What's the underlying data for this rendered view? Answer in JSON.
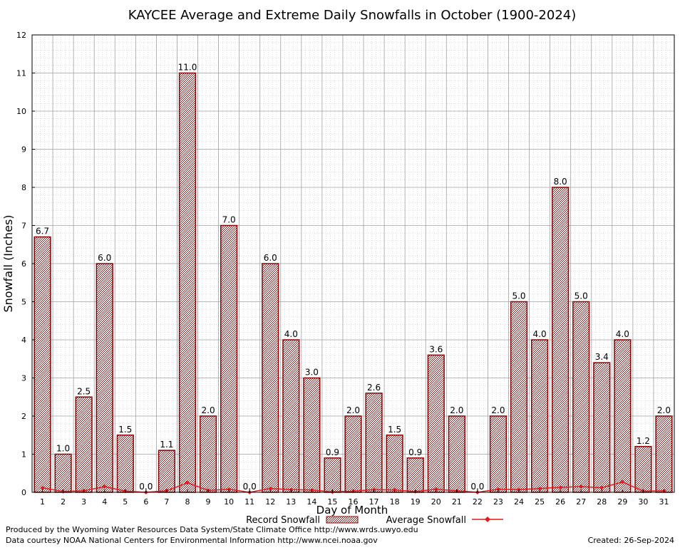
{
  "colors": {
    "bar_fill": "#a05050",
    "bar_stroke": "#8b0000",
    "avg_line": "#e31a1c",
    "grid": "#a0a0a0",
    "minor_grid": "#c8c8c8"
  },
  "chart_data": {
    "type": "bar",
    "title": "KAYCEE Average and Extreme Daily Snowfalls in October (1900-2024)",
    "xlabel": "Day of Month",
    "ylabel": "Snowfall (Inches)",
    "ylim": [
      0,
      12
    ],
    "yticks": [
      "0",
      "1",
      "2",
      "3",
      "4",
      "5",
      "6",
      "7",
      "8",
      "9",
      "10",
      "11",
      "12"
    ],
    "grid": true,
    "legend_position": "bottom",
    "categories": [
      "1",
      "2",
      "3",
      "4",
      "5",
      "6",
      "7",
      "8",
      "9",
      "10",
      "11",
      "12",
      "13",
      "14",
      "15",
      "16",
      "17",
      "18",
      "19",
      "20",
      "21",
      "22",
      "23",
      "24",
      "25",
      "26",
      "27",
      "28",
      "29",
      "30",
      "31"
    ],
    "series": [
      {
        "name": "Record Snowfall",
        "kind": "bar",
        "values": [
          6.7,
          1.0,
          2.5,
          6.0,
          1.5,
          0.0,
          1.1,
          11.0,
          2.0,
          7.0,
          0.0,
          6.0,
          4.0,
          3.0,
          0.9,
          2.0,
          2.6,
          1.5,
          0.9,
          3.6,
          2.0,
          0.0,
          2.0,
          5.0,
          4.0,
          8.0,
          5.0,
          3.4,
          4.0,
          1.2,
          2.0
        ],
        "labels": [
          "6.7",
          "1.0",
          "2.5",
          "6.0",
          "1.5",
          "0.0",
          "1.1",
          "11.0",
          "2.0",
          "7.0",
          "0.0",
          "6.0",
          "4.0",
          "3.0",
          "0.9",
          "2.0",
          "2.6",
          "1.5",
          "0.9",
          "3.6",
          "2.0",
          "0.0",
          "2.0",
          "5.0",
          "4.0",
          "8.0",
          "5.0",
          "3.4",
          "4.0",
          "1.2",
          "2.0"
        ]
      },
      {
        "name": "Average Snowfall",
        "kind": "line",
        "values": [
          0.12,
          0.02,
          0.04,
          0.15,
          0.03,
          0.0,
          0.04,
          0.25,
          0.05,
          0.08,
          0.0,
          0.1,
          0.07,
          0.06,
          0.01,
          0.03,
          0.07,
          0.06,
          0.02,
          0.08,
          0.04,
          0.0,
          0.08,
          0.07,
          0.1,
          0.13,
          0.15,
          0.12,
          0.27,
          0.03,
          0.04
        ]
      }
    ]
  },
  "footer": {
    "line1": "Produced by the Wyoming Water Resources Data System/State Climate Office http://www.wrds.uwyo.edu",
    "line2": "Data courtesy NOAA National Centers for Environmental Information http://www.ncei.noaa.gov",
    "created": "Created:  26-Sep-2024"
  }
}
